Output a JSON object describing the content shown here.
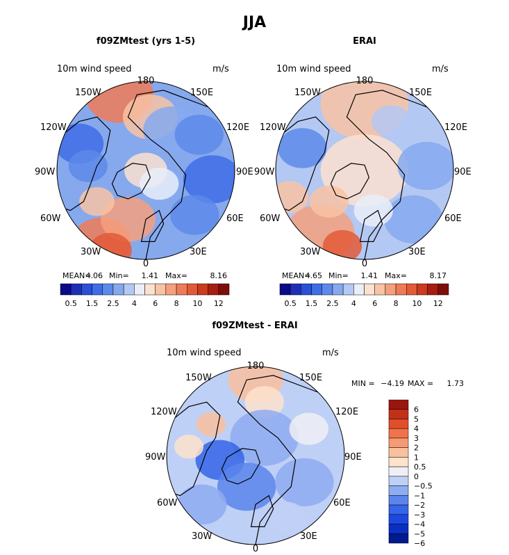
{
  "main_title": "JJA",
  "colors": {
    "land_outline": "#000000",
    "seq": [
      "#0b0b87",
      "#1f2fb5",
      "#2a50d8",
      "#3f6de6",
      "#5d8ae9",
      "#86a9ee",
      "#b3c8f3",
      "#e9eef9",
      "#fbe1cf",
      "#f8c3a4",
      "#f4a07e",
      "#ee7b57",
      "#e35a37",
      "#cc3a20",
      "#a81d12",
      "#7f0d0c"
    ],
    "div": [
      "#001a8f",
      "#0a2fc4",
      "#1d48e0",
      "#3565e8",
      "#5a85ec",
      "#8eacf1",
      "#bfd0f6",
      "#eef0f5",
      "#fde2cc",
      "#f9c09e",
      "#f69a73",
      "#f07349",
      "#e14e2b",
      "#c2301a",
      "#9a160e"
    ]
  },
  "panels": [
    {
      "title": "f09ZMtest (yrs 1-5)",
      "variable": "10m wind speed",
      "units": "m/s",
      "lon_labels": {
        "top": "180",
        "tl": "150W",
        "tr": "150E",
        "ul": "120W",
        "ur": "120E",
        "ml": "90W",
        "mr": "90E",
        "ll": "60W",
        "lr": "60E",
        "bl": "30W",
        "br": "30E",
        "bottom": "0"
      },
      "stats": {
        "mean_label": "MEAN=",
        "mean": "4.06",
        "min_label": "Min=",
        "min": "1.41",
        "max_label": "Max=",
        "max": "8.16"
      },
      "colorbar_ticks": [
        "0.5",
        "1.5",
        "2.5",
        "4",
        "6",
        "8",
        "10",
        "12"
      ]
    },
    {
      "title": "ERAI",
      "variable": "10m wind speed",
      "units": "m/s",
      "lon_labels": {
        "top": "180",
        "tl": "150W",
        "tr": "150E",
        "ul": "120W",
        "ur": "120E",
        "ml": "90W",
        "mr": "90E",
        "ll": "60W",
        "lr": "60E",
        "bl": "30W",
        "br": "30E",
        "bottom": "0"
      },
      "stats": {
        "mean_label": "MEAN=",
        "mean": "4.65",
        "min_label": "Min=",
        "min": "1.41",
        "max_label": "Max=",
        "max": "8.17"
      },
      "colorbar_ticks": [
        "0.5",
        "1.5",
        "2.5",
        "4",
        "6",
        "8",
        "10",
        "12"
      ]
    },
    {
      "title": "f09ZMtest - ERAI",
      "variable": "10m wind speed",
      "units": "m/s",
      "lon_labels": {
        "top": "180",
        "tl": "150W",
        "tr": "150E",
        "ul": "120W",
        "ur": "120E",
        "ml": "90W",
        "mr": "90E",
        "ll": "60W",
        "lr": "60E",
        "bl": "30W",
        "br": "30E",
        "bottom": "0"
      },
      "stats": {
        "min_label": "MIN =",
        "min": "−4.19",
        "max_label": "MAX =",
        "max": "1.73"
      },
      "colorbar_ticks": [
        "6",
        "5",
        "4",
        "3",
        "2",
        "1",
        "0.5",
        "0",
        "−0.5",
        "−1",
        "−2",
        "−3",
        "−4",
        "−5",
        "−6"
      ]
    }
  ],
  "chart_data": [
    {
      "type": "heatmap",
      "projection": "north polar stereographic",
      "title": "f09ZMtest (yrs 1-5)",
      "variable": "10m wind speed",
      "units": "m/s",
      "mean": 4.06,
      "min": 1.41,
      "max": 8.16,
      "levels": [
        0.5,
        1,
        1.5,
        2,
        2.5,
        3,
        4,
        5,
        6,
        7,
        8,
        9,
        10,
        11,
        12
      ]
    },
    {
      "type": "heatmap",
      "projection": "north polar stereographic",
      "title": "ERAI",
      "variable": "10m wind speed",
      "units": "m/s",
      "mean": 4.65,
      "min": 1.41,
      "max": 8.17,
      "levels": [
        0.5,
        1,
        1.5,
        2,
        2.5,
        3,
        4,
        5,
        6,
        7,
        8,
        9,
        10,
        11,
        12
      ]
    },
    {
      "type": "heatmap",
      "projection": "north polar stereographic",
      "title": "f09ZMtest - ERAI",
      "variable": "10m wind speed",
      "units": "m/s",
      "min": -4.19,
      "max": 1.73,
      "levels": [
        -6,
        -5,
        -4,
        -3,
        -2,
        -1,
        -0.5,
        0,
        0.5,
        1,
        2,
        3,
        4,
        5,
        6
      ]
    }
  ]
}
